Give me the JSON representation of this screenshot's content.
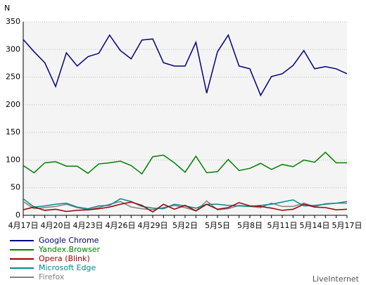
{
  "chart_data": {
    "type": "line",
    "y_label": "N",
    "categories": [
      "4月17日",
      null,
      null,
      "4月20日",
      null,
      null,
      "4月23日",
      null,
      null,
      "4月26日",
      null,
      null,
      "4月29日",
      null,
      null,
      "5月2日",
      null,
      null,
      "5月5日",
      null,
      null,
      "5月8日",
      null,
      null,
      "5月11日",
      null,
      null,
      "5月14日",
      null,
      null,
      "5月17日"
    ],
    "series": [
      {
        "name": "Google Chrome",
        "color": "#000080",
        "values": [
          318,
          296,
          276,
          233,
          294,
          270,
          287,
          293,
          326,
          298,
          283,
          317,
          319,
          276,
          270,
          270,
          313,
          221,
          296,
          326,
          270,
          265,
          217,
          251,
          256,
          271,
          298,
          265,
          269,
          265,
          256
        ]
      },
      {
        "name": "Yandex.Browser",
        "color": "#008000",
        "values": [
          90,
          77,
          95,
          97,
          89,
          89,
          76,
          93,
          95,
          98,
          90,
          75,
          106,
          109,
          95,
          78,
          107,
          77,
          79,
          101,
          81,
          85,
          94,
          83,
          92,
          88,
          100,
          96,
          114,
          95,
          95
        ]
      },
      {
        "name": "Opera (Blink)",
        "color": "#990000",
        "values": [
          10,
          15,
          9,
          11,
          7,
          9,
          10,
          12,
          15,
          20,
          24,
          18,
          6,
          20,
          11,
          18,
          8,
          20,
          11,
          14,
          23,
          17,
          16,
          13,
          9,
          11,
          20,
          15,
          14,
          10,
          11
        ]
      },
      {
        "name": "Microsoft Edge",
        "color": "#008b8b",
        "values": [
          30,
          15,
          17,
          20,
          22,
          15,
          12,
          17,
          18,
          30,
          25,
          16,
          13,
          12,
          20,
          17,
          13,
          20,
          20,
          18,
          17,
          16,
          18,
          20,
          24,
          28,
          17,
          18,
          20,
          22,
          25
        ]
      },
      {
        "name": "Firefox",
        "color": "#808080",
        "values": [
          25,
          12,
          14,
          16,
          20,
          14,
          10,
          14,
          20,
          25,
          15,
          12,
          10,
          14,
          18,
          14,
          8,
          26,
          10,
          12,
          18,
          16,
          14,
          22,
          16,
          16,
          22,
          16,
          21,
          22,
          22
        ]
      }
    ],
    "ylim": [
      0,
      350
    ],
    "yticks": [
      0,
      50,
      100,
      150,
      200,
      250,
      300,
      350
    ],
    "grid": true,
    "watermark": "LiveInternet"
  }
}
